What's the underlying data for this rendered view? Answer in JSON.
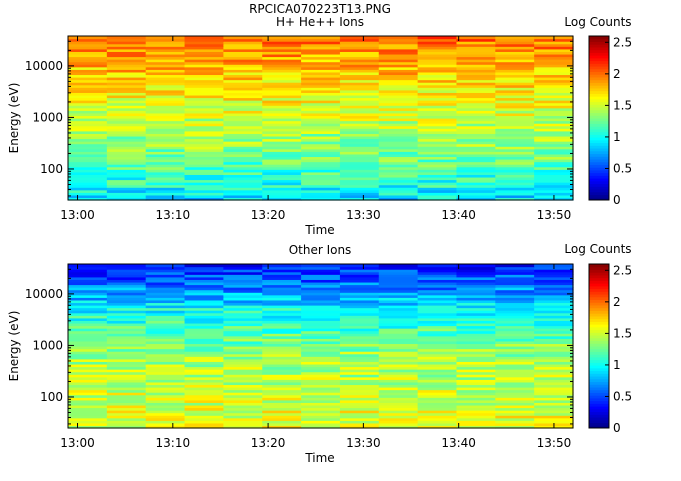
{
  "figure_title": "RPCICA070223T13.PNG",
  "chart_data": [
    {
      "type": "heatmap",
      "title": "H+ He++ Ions",
      "xlabel": "Time",
      "ylabel": "Energy (eV)",
      "x_ticks": [
        "13:00",
        "13:10",
        "13:20",
        "13:30",
        "13:40",
        "13:50"
      ],
      "x_range": [
        "12:59",
        "13:52"
      ],
      "y_scale": "log",
      "y_ticks": [
        "100",
        "1000",
        "10000"
      ],
      "y_range": [
        25,
        38000
      ],
      "colorbar": {
        "label": "Log Counts",
        "range": [
          0,
          2.6
        ],
        "ticks": [
          "0",
          "0.5",
          "1",
          "1.5",
          "2",
          "2.5"
        ]
      },
      "energy_profile": {
        "energy_eV": [
          30,
          50,
          100,
          200,
          500,
          1000,
          2000,
          5000,
          10000,
          20000,
          35000
        ],
        "log_counts": [
          0.9,
          1.05,
          1.15,
          1.3,
          1.4,
          1.5,
          1.6,
          1.7,
          1.8,
          1.9,
          2.0
        ]
      }
    },
    {
      "type": "heatmap",
      "title": "Other Ions",
      "xlabel": "Time",
      "ylabel": "Energy (eV)",
      "x_ticks": [
        "13:00",
        "13:10",
        "13:20",
        "13:30",
        "13:40",
        "13:50"
      ],
      "x_range": [
        "12:59",
        "13:52"
      ],
      "y_scale": "log",
      "y_ticks": [
        "100",
        "1000",
        "10000"
      ],
      "y_range": [
        25,
        38000
      ],
      "colorbar": {
        "label": "Log Counts",
        "range": [
          0,
          2.6
        ],
        "ticks": [
          "0",
          "0.5",
          "1",
          "1.5",
          "2",
          "2.5"
        ]
      },
      "energy_profile": {
        "energy_eV": [
          30,
          50,
          100,
          200,
          500,
          1000,
          2000,
          5000,
          10000,
          20000,
          35000
        ],
        "log_counts": [
          1.55,
          1.55,
          1.5,
          1.45,
          1.4,
          1.3,
          1.15,
          1.0,
          0.75,
          0.55,
          0.4
        ]
      }
    }
  ]
}
